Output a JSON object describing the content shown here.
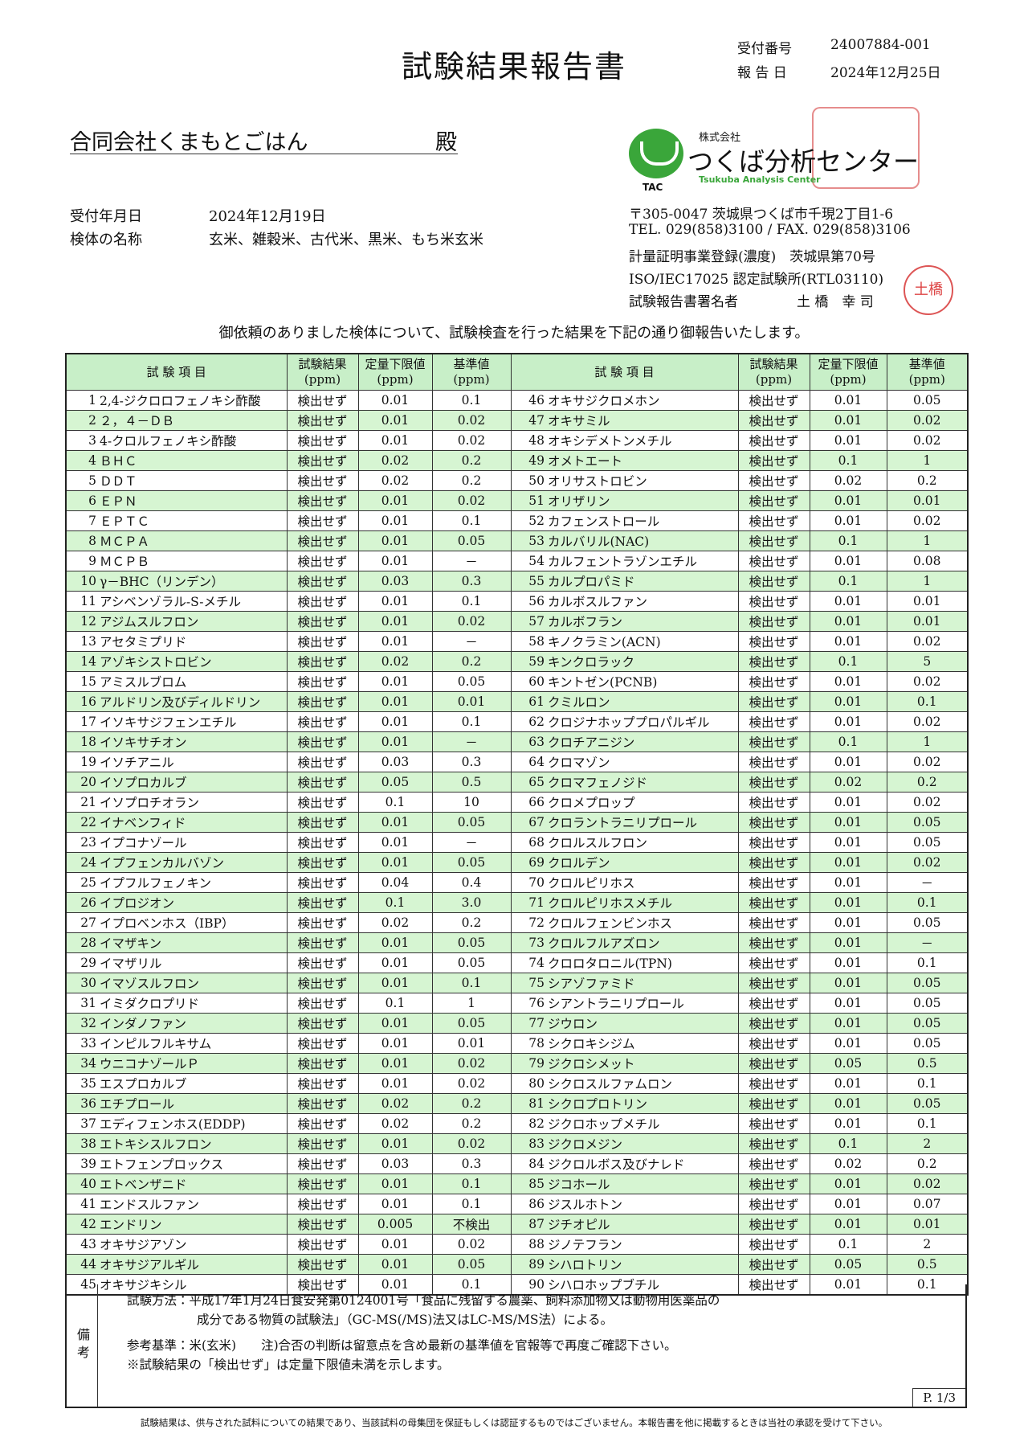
{
  "header": {
    "title": "試験結果報告書",
    "receipt_no_label": "受付番号",
    "receipt_no": "24007884-001",
    "report_date_label": "報 告 日",
    "report_date": "2024年12月25日"
  },
  "client": {
    "name": "合同会社くまもとごはん",
    "honorific": "殿"
  },
  "info": {
    "received_label": "受付年月日",
    "received": "2024年12月19日",
    "sample_label": "検体の名称",
    "sample": "玄米、雑穀米、古代米、黒米、もち米玄米"
  },
  "lab": {
    "logo": "TAC",
    "company_prefix": "株式会社",
    "name": "つくば分析センター",
    "name_en": "Tsukuba Analysis Center",
    "address": "〒305-0047 茨城県つくば市千現2丁目1-6",
    "tel": "TEL. 029(858)3100 / FAX. 029(858)3106",
    "registration": "計量証明事業登録(濃度)　茨城県第70号",
    "iso": "ISO/IEC17025 認定試験所(RTL03110)",
    "signer_label": "試験報告書署名者",
    "signer": "土 橋　幸 司",
    "seal": "土橋"
  },
  "intro": "御依頼のありました検体について、試験検査を行った結果を下記の通り御報告いたします。",
  "table": {
    "headers": [
      "試 験 項 目",
      "試験結果",
      "定量下限値",
      "基準値"
    ],
    "unit": "(ppm)",
    "rows": [
      [
        "1",
        "2,4-ジクロロフェノキシ酢酸",
        "検出せず",
        "0.01",
        "0.1"
      ],
      [
        "2",
        "２，４－ＤＢ",
        "検出せず",
        "0.01",
        "0.02"
      ],
      [
        "3",
        "4-クロルフェノキシ酢酸",
        "検出せず",
        "0.01",
        "0.02"
      ],
      [
        "4",
        "ＢＨＣ",
        "検出せず",
        "0.02",
        "0.2"
      ],
      [
        "5",
        "ＤＤＴ",
        "検出せず",
        "0.02",
        "0.2"
      ],
      [
        "6",
        "ＥＰＮ",
        "検出せず",
        "0.01",
        "0.02"
      ],
      [
        "7",
        "ＥＰＴＣ",
        "検出せず",
        "0.01",
        "0.1"
      ],
      [
        "8",
        "ＭＣＰＡ",
        "検出せず",
        "0.01",
        "0.05"
      ],
      [
        "9",
        "ＭＣＰＢ",
        "検出せず",
        "0.01",
        "－"
      ],
      [
        "10",
        "γ－BHC（リンデン）",
        "検出せず",
        "0.03",
        "0.3"
      ],
      [
        "11",
        "アシベンゾラル-S-メチル",
        "検出せず",
        "0.01",
        "0.1"
      ],
      [
        "12",
        "アジムスルフロン",
        "検出せず",
        "0.01",
        "0.02"
      ],
      [
        "13",
        "アセタミプリド",
        "検出せず",
        "0.01",
        "－"
      ],
      [
        "14",
        "アゾキシストロビン",
        "検出せず",
        "0.02",
        "0.2"
      ],
      [
        "15",
        "アミスルブロム",
        "検出せず",
        "0.01",
        "0.05"
      ],
      [
        "16",
        "アルドリン及びディルドリン",
        "検出せず",
        "0.01",
        "0.01"
      ],
      [
        "17",
        "イソキサジフェンエチル",
        "検出せず",
        "0.01",
        "0.1"
      ],
      [
        "18",
        "イソキサチオン",
        "検出せず",
        "0.01",
        "－"
      ],
      [
        "19",
        "イソチアニル",
        "検出せず",
        "0.03",
        "0.3"
      ],
      [
        "20",
        "イソプロカルブ",
        "検出せず",
        "0.05",
        "0.5"
      ],
      [
        "21",
        "イソプロチオラン",
        "検出せず",
        "0.1",
        "10"
      ],
      [
        "22",
        "イナベンフィド",
        "検出せず",
        "0.01",
        "0.05"
      ],
      [
        "23",
        "イプコナゾール",
        "検出せず",
        "0.01",
        "－"
      ],
      [
        "24",
        "イプフェンカルバゾン",
        "検出せず",
        "0.01",
        "0.05"
      ],
      [
        "25",
        "イプフルフェノキン",
        "検出せず",
        "0.04",
        "0.4"
      ],
      [
        "26",
        "イプロジオン",
        "検出せず",
        "0.1",
        "3.0"
      ],
      [
        "27",
        "イプロベンホス（IBP）",
        "検出せず",
        "0.02",
        "0.2"
      ],
      [
        "28",
        "イマザキン",
        "検出せず",
        "0.01",
        "0.05"
      ],
      [
        "29",
        "イマザリル",
        "検出せず",
        "0.01",
        "0.05"
      ],
      [
        "30",
        "イマゾスルフロン",
        "検出せず",
        "0.01",
        "0.1"
      ],
      [
        "31",
        "イミダクロプリド",
        "検出せず",
        "0.1",
        "1"
      ],
      [
        "32",
        "インダノファン",
        "検出せず",
        "0.01",
        "0.05"
      ],
      [
        "33",
        "インピルフルキサム",
        "検出せず",
        "0.01",
        "0.01"
      ],
      [
        "34",
        "ウニコナゾールＰ",
        "検出せず",
        "0.01",
        "0.02"
      ],
      [
        "35",
        "エスプロカルブ",
        "検出せず",
        "0.01",
        "0.02"
      ],
      [
        "36",
        "エチプロール",
        "検出せず",
        "0.02",
        "0.2"
      ],
      [
        "37",
        "エディフェンホス(EDDP)",
        "検出せず",
        "0.02",
        "0.2"
      ],
      [
        "38",
        "エトキシスルフロン",
        "検出せず",
        "0.01",
        "0.02"
      ],
      [
        "39",
        "エトフェンプロックス",
        "検出せず",
        "0.03",
        "0.3"
      ],
      [
        "40",
        "エトベンザニド",
        "検出せず",
        "0.01",
        "0.1"
      ],
      [
        "41",
        "エンドスルファン",
        "検出せず",
        "0.01",
        "0.1"
      ],
      [
        "42",
        "エンドリン",
        "検出せず",
        "0.005",
        "不検出"
      ],
      [
        "43",
        "オキサジアゾン",
        "検出せず",
        "0.01",
        "0.02"
      ],
      [
        "44",
        "オキサジアルギル",
        "検出せず",
        "0.01",
        "0.05"
      ],
      [
        "45",
        "オキサジキシル",
        "検出せず",
        "0.01",
        "0.1"
      ],
      [
        "46",
        "オキサジクロメホン",
        "検出せず",
        "0.01",
        "0.05"
      ],
      [
        "47",
        "オキサミル",
        "検出せず",
        "0.01",
        "0.02"
      ],
      [
        "48",
        "オキシデメトンメチル",
        "検出せず",
        "0.01",
        "0.02"
      ],
      [
        "49",
        "オメトエート",
        "検出せず",
        "0.1",
        "1"
      ],
      [
        "50",
        "オリサストロビン",
        "検出せず",
        "0.02",
        "0.2"
      ],
      [
        "51",
        "オリザリン",
        "検出せず",
        "0.01",
        "0.01"
      ],
      [
        "52",
        "カフェンストロール",
        "検出せず",
        "0.01",
        "0.02"
      ],
      [
        "53",
        "カルバリル(NAC)",
        "検出せず",
        "0.1",
        "1"
      ],
      [
        "54",
        "カルフェントラゾンエチル",
        "検出せず",
        "0.01",
        "0.08"
      ],
      [
        "55",
        "カルプロパミド",
        "検出せず",
        "0.1",
        "1"
      ],
      [
        "56",
        "カルボスルファン",
        "検出せず",
        "0.01",
        "0.01"
      ],
      [
        "57",
        "カルボフラン",
        "検出せず",
        "0.01",
        "0.01"
      ],
      [
        "58",
        "キノクラミン(ACN)",
        "検出せず",
        "0.01",
        "0.02"
      ],
      [
        "59",
        "キンクロラック",
        "検出せず",
        "0.1",
        "5"
      ],
      [
        "60",
        "キントゼン(PCNB)",
        "検出せず",
        "0.01",
        "0.02"
      ],
      [
        "61",
        "クミルロン",
        "検出せず",
        "0.01",
        "0.1"
      ],
      [
        "62",
        "クロジナホッププロパルギル",
        "検出せず",
        "0.01",
        "0.02"
      ],
      [
        "63",
        "クロチアニジン",
        "検出せず",
        "0.1",
        "1"
      ],
      [
        "64",
        "クロマゾン",
        "検出せず",
        "0.01",
        "0.02"
      ],
      [
        "65",
        "クロマフェノジド",
        "検出せず",
        "0.02",
        "0.2"
      ],
      [
        "66",
        "クロメプロップ",
        "検出せず",
        "0.01",
        "0.02"
      ],
      [
        "67",
        "クロラントラニリプロール",
        "検出せず",
        "0.01",
        "0.05"
      ],
      [
        "68",
        "クロルスルフロン",
        "検出せず",
        "0.01",
        "0.05"
      ],
      [
        "69",
        "クロルデン",
        "検出せず",
        "0.01",
        "0.02"
      ],
      [
        "70",
        "クロルピリホス",
        "検出せず",
        "0.01",
        "－"
      ],
      [
        "71",
        "クロルピリホスメチル",
        "検出せず",
        "0.01",
        "0.1"
      ],
      [
        "72",
        "クロルフェンビンホス",
        "検出せず",
        "0.01",
        "0.05"
      ],
      [
        "73",
        "クロルフルアズロン",
        "検出せず",
        "0.01",
        "－"
      ],
      [
        "74",
        "クロロタロニル(TPN)",
        "検出せず",
        "0.01",
        "0.1"
      ],
      [
        "75",
        "シアゾファミド",
        "検出せず",
        "0.01",
        "0.05"
      ],
      [
        "76",
        "シアントラニリプロール",
        "検出せず",
        "0.01",
        "0.05"
      ],
      [
        "77",
        "ジウロン",
        "検出せず",
        "0.01",
        "0.05"
      ],
      [
        "78",
        "シクロキシジム",
        "検出せず",
        "0.01",
        "0.05"
      ],
      [
        "79",
        "ジクロシメット",
        "検出せず",
        "0.05",
        "0.5"
      ],
      [
        "80",
        "シクロスルファムロン",
        "検出せず",
        "0.01",
        "0.1"
      ],
      [
        "81",
        "シクロプロトリン",
        "検出せず",
        "0.01",
        "0.05"
      ],
      [
        "82",
        "ジクロホップメチル",
        "検出せず",
        "0.01",
        "0.1"
      ],
      [
        "83",
        "ジクロメジン",
        "検出せず",
        "0.1",
        "2"
      ],
      [
        "84",
        "ジクロルボス及びナレド",
        "検出せず",
        "0.02",
        "0.2"
      ],
      [
        "85",
        "ジコホール",
        "検出せず",
        "0.01",
        "0.02"
      ],
      [
        "86",
        "ジスルホトン",
        "検出せず",
        "0.01",
        "0.07"
      ],
      [
        "87",
        "ジチオピル",
        "検出せず",
        "0.01",
        "0.01"
      ],
      [
        "88",
        "ジノテフラン",
        "検出せず",
        "0.1",
        "2"
      ],
      [
        "89",
        "シハロトリン",
        "検出せず",
        "0.05",
        "0.5"
      ],
      [
        "90",
        "シハロホップブチル",
        "検出せず",
        "0.01",
        "0.1"
      ]
    ]
  },
  "remarks": {
    "label": "備考",
    "lines": [
      "試験方法：平成17年1月24日食安発第0124001号「食品に残留する農薬、飼料添加物又は動物用医薬品の",
      "成分である物質の試験法」（GC-MS(/MS)法又はLC-MS/MS法）による。",
      "参考基準：米(玄米)　　注)合否の判断は留意点を含め最新の基準値を官報等で再度ご確認下さい。",
      "※試験結果の「検出せず」は定量下限値未満を示します。"
    ]
  },
  "page": "P. 1/3",
  "footer": "試験結果は、供与された試料についての結果であり、当該試料の母集団を保証もしくは認証するものではございません。本報告書を他に掲載するときは当社の承認を受けて下さい。"
}
